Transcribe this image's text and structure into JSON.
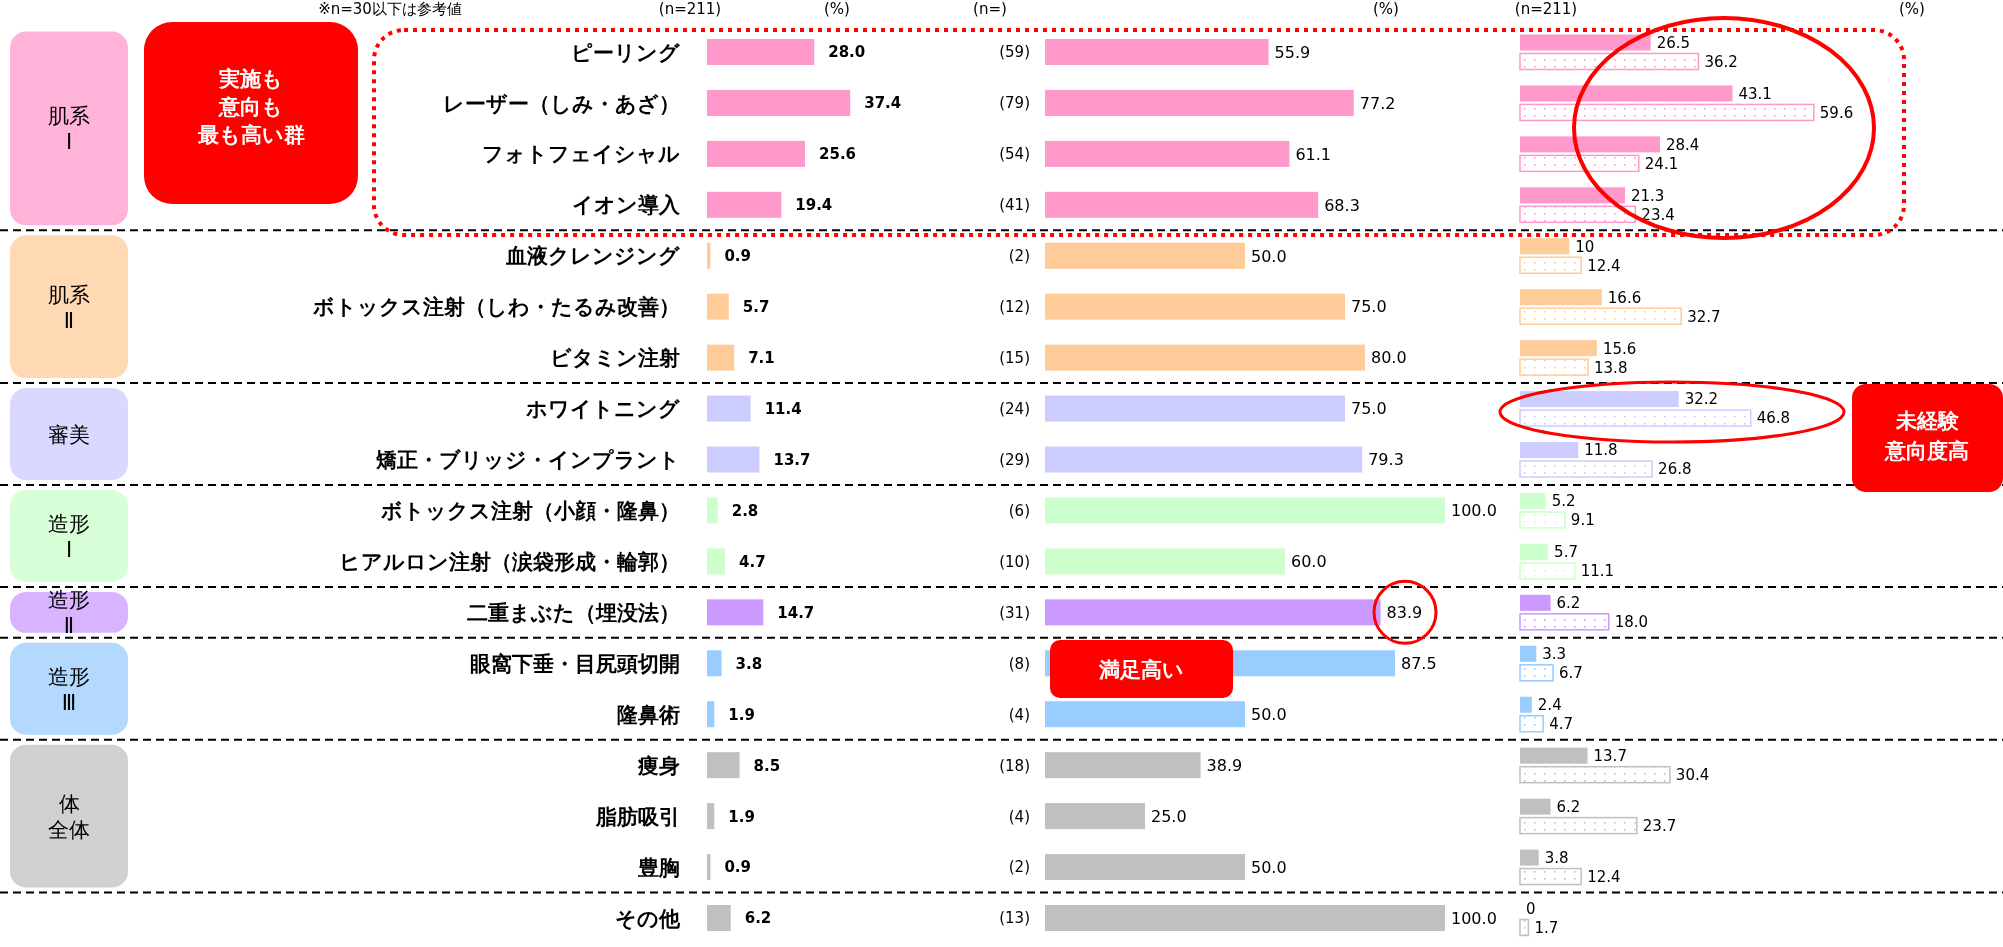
{
  "chart_data": [
    {
      "type": "bar",
      "orientation": "horizontal",
      "subtitle": "(n=211)",
      "xlabel": "(%)",
      "categories": [
        "ピーリング",
        "レーザー（しみ・あざ）",
        "フォトフェイシャル",
        "イオン導入",
        "血液クレンジング",
        "ボトックス注射（しわ・たるみ改善）",
        "ビタミン注射",
        "ホワイトニング",
        "矯正・ブリッジ・インプラント",
        "ボトックス注射（小顔・隆鼻）",
        "ヒアルロン注射（涙袋形成・輪郭）",
        "二重まぶた（埋没法）",
        "眼窩下垂・目尻頭切開",
        "隆鼻術",
        "痩身",
        "脂肪吸引",
        "豊胸",
        "その他"
      ],
      "values": [
        28.0,
        37.4,
        25.6,
        19.4,
        0.9,
        5.7,
        7.1,
        11.4,
        13.7,
        2.8,
        4.7,
        14.7,
        3.8,
        1.9,
        8.5,
        1.9,
        0.9,
        6.2
      ],
      "value_labels": [
        "28.0",
        "37.4",
        "25.6",
        "19.4",
        "0.9",
        "5.7",
        "7.1",
        "11.4",
        "13.7",
        "2.8",
        "4.7",
        "14.7",
        "3.8",
        "1.9",
        "8.5",
        "1.9",
        "0.9",
        "6.2"
      ],
      "colors": [
        "#ff99cc",
        "#ff99cc",
        "#ff99cc",
        "#ff99cc",
        "#ffcc99",
        "#ffcc99",
        "#ffcc99",
        "#ccccff",
        "#ccccff",
        "#ccffcc",
        "#ccffcc",
        "#cc99ff",
        "#99ccff",
        "#99ccff",
        "#c0c0c0",
        "#c0c0c0",
        "#c0c0c0",
        "#c0c0c0"
      ],
      "annotations": [
        "※n=30以下は参考値",
        "実施も",
        "意向も",
        "最も高い群",
        "肌系",
        "Ⅰ",
        "肌系",
        "Ⅱ",
        "審美",
        "造形",
        "Ⅰ",
        "造形",
        "Ⅱ",
        "造形",
        "Ⅲ",
        "体",
        "全体"
      ]
    },
    {
      "type": "bar",
      "orientation": "horizontal",
      "subtitle": "(n=)",
      "xlabel": "(%)",
      "categories": [
        "(59)",
        "(79)",
        "(54)",
        "(41)",
        "(2)",
        "(12)",
        "(15)",
        "(24)",
        "(29)",
        "(6)",
        "(10)",
        "(31)",
        "(8)",
        "(4)",
        "(18)",
        "(4)",
        "(2)",
        "(13)"
      ],
      "values": [
        55.9,
        77.2,
        61.1,
        68.3,
        50.0,
        75.0,
        80.0,
        75.0,
        79.3,
        100.0,
        60.0,
        83.9,
        87.5,
        50.0,
        38.9,
        25.0,
        50.0,
        100.0
      ],
      "value_labels": [
        "55.9",
        "77.2",
        "61.1",
        "68.3",
        "50.0",
        "75.0",
        "80.0",
        "75.0",
        "79.3",
        "100.0",
        "60.0",
        "83.9",
        "87.5",
        "50.0",
        "38.9",
        "25.0",
        "50.0",
        "100.0"
      ],
      "colors": [
        "#ff99cc",
        "#ff99cc",
        "#ff99cc",
        "#ff99cc",
        "#ffcc99",
        "#ffcc99",
        "#ffcc99",
        "#ccccff",
        "#ccccff",
        "#ccffcc",
        "#ccffcc",
        "#cc99ff",
        "#99ccff",
        "#99ccff",
        "#c0c0c0",
        "#c0c0c0",
        "#c0c0c0",
        "#c0c0c0"
      ],
      "annotations": [
        "満足高い"
      ]
    },
    {
      "type": "bar",
      "orientation": "horizontal",
      "subtitle": "(n=211)",
      "xlabel": "(%)",
      "categories": [
        null,
        null,
        null,
        null,
        null,
        null,
        null,
        null,
        null,
        null,
        null,
        null,
        null,
        null,
        null,
        null,
        null,
        null
      ],
      "series": [
        {
          "values": [
            26.5,
            43.1,
            28.4,
            21.3,
            10,
            16.6,
            15.6,
            32.2,
            11.8,
            5.2,
            5.7,
            6.2,
            3.3,
            2.4,
            13.7,
            6.2,
            3.8,
            0
          ],
          "value_labels": [
            "26.5",
            "43.1",
            "28.4",
            "21.3",
            "10",
            "16.6",
            "15.6",
            "32.2",
            "11.8",
            "5.2",
            "5.7",
            "6.2",
            "3.3",
            "2.4",
            "13.7",
            "6.2",
            "3.8",
            "0"
          ],
          "colors": [
            "#ff99cc",
            "#ff99cc",
            "#ff99cc",
            "#ff99cc",
            "#ffcc99",
            "#ffcc99",
            "#ffcc99",
            "#ccccff",
            "#ccccff",
            "#ccffcc",
            "#ccffcc",
            "#cc99ff",
            "#99ccff",
            "#99ccff",
            "#c0c0c0",
            "#c0c0c0",
            "#c0c0c0",
            "#c0c0c0"
          ]
        },
        {
          "values": [
            36.2,
            59.6,
            24.1,
            23.4,
            12.4,
            32.7,
            13.8,
            46.8,
            26.8,
            9.1,
            11.1,
            18.0,
            6.7,
            4.7,
            30.4,
            23.7,
            12.4,
            1.7
          ],
          "value_labels": [
            "36.2",
            "59.6",
            "24.1",
            "23.4",
            "12.4",
            "32.7",
            "13.8",
            "46.8",
            "26.8",
            "9.1",
            "11.1",
            "18.0",
            "6.7",
            "4.7",
            "30.4",
            "23.7",
            "12.4",
            "1.7"
          ],
          "colors": [
            "#ff99cc",
            "#ff99cc",
            "#ff99cc",
            "#ff99cc",
            "#ffcc99",
            "#ffcc99",
            "#ffcc99",
            "#ccccff",
            "#ccccff",
            "#ccffcc",
            "#ccffcc",
            "#cc99ff",
            "#99ccff",
            "#99ccff",
            "#c0c0c0",
            "#c0c0c0",
            "#c0c0c0",
            "#c0c0c0"
          ]
        }
      ],
      "annotations": [
        "未経験",
        "意向度高"
      ]
    }
  ]
}
